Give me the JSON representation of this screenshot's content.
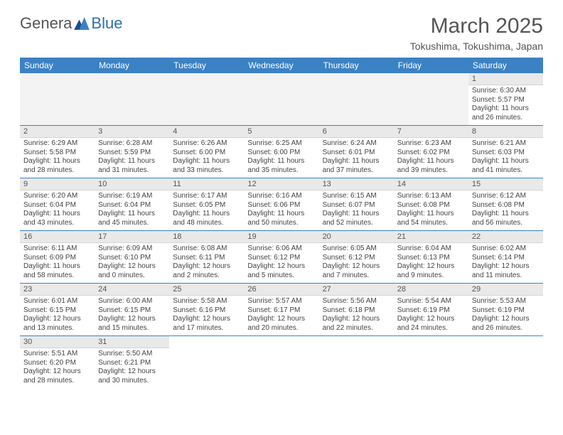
{
  "logo": {
    "text1": "Genera",
    "text2": "Blue"
  },
  "title": "March 2025",
  "location": "Tokushima, Tokushima, Japan",
  "colors": {
    "header_bg": "#3b82c4",
    "header_text": "#ffffff",
    "daynum_bg": "#e9e9e9",
    "border": "#3b82c4",
    "text": "#444444"
  },
  "weekdays": [
    "Sunday",
    "Monday",
    "Tuesday",
    "Wednesday",
    "Thursday",
    "Friday",
    "Saturday"
  ],
  "weeks": [
    [
      null,
      null,
      null,
      null,
      null,
      null,
      {
        "n": "1",
        "sr": "6:30 AM",
        "ss": "5:57 PM",
        "dl": "11 hours and 26 minutes."
      }
    ],
    [
      {
        "n": "2",
        "sr": "6:29 AM",
        "ss": "5:58 PM",
        "dl": "11 hours and 28 minutes."
      },
      {
        "n": "3",
        "sr": "6:28 AM",
        "ss": "5:59 PM",
        "dl": "11 hours and 31 minutes."
      },
      {
        "n": "4",
        "sr": "6:26 AM",
        "ss": "6:00 PM",
        "dl": "11 hours and 33 minutes."
      },
      {
        "n": "5",
        "sr": "6:25 AM",
        "ss": "6:00 PM",
        "dl": "11 hours and 35 minutes."
      },
      {
        "n": "6",
        "sr": "6:24 AM",
        "ss": "6:01 PM",
        "dl": "11 hours and 37 minutes."
      },
      {
        "n": "7",
        "sr": "6:23 AM",
        "ss": "6:02 PM",
        "dl": "11 hours and 39 minutes."
      },
      {
        "n": "8",
        "sr": "6:21 AM",
        "ss": "6:03 PM",
        "dl": "11 hours and 41 minutes."
      }
    ],
    [
      {
        "n": "9",
        "sr": "6:20 AM",
        "ss": "6:04 PM",
        "dl": "11 hours and 43 minutes."
      },
      {
        "n": "10",
        "sr": "6:19 AM",
        "ss": "6:04 PM",
        "dl": "11 hours and 45 minutes."
      },
      {
        "n": "11",
        "sr": "6:17 AM",
        "ss": "6:05 PM",
        "dl": "11 hours and 48 minutes."
      },
      {
        "n": "12",
        "sr": "6:16 AM",
        "ss": "6:06 PM",
        "dl": "11 hours and 50 minutes."
      },
      {
        "n": "13",
        "sr": "6:15 AM",
        "ss": "6:07 PM",
        "dl": "11 hours and 52 minutes."
      },
      {
        "n": "14",
        "sr": "6:13 AM",
        "ss": "6:08 PM",
        "dl": "11 hours and 54 minutes."
      },
      {
        "n": "15",
        "sr": "6:12 AM",
        "ss": "6:08 PM",
        "dl": "11 hours and 56 minutes."
      }
    ],
    [
      {
        "n": "16",
        "sr": "6:11 AM",
        "ss": "6:09 PM",
        "dl": "11 hours and 58 minutes."
      },
      {
        "n": "17",
        "sr": "6:09 AM",
        "ss": "6:10 PM",
        "dl": "12 hours and 0 minutes."
      },
      {
        "n": "18",
        "sr": "6:08 AM",
        "ss": "6:11 PM",
        "dl": "12 hours and 2 minutes."
      },
      {
        "n": "19",
        "sr": "6:06 AM",
        "ss": "6:12 PM",
        "dl": "12 hours and 5 minutes."
      },
      {
        "n": "20",
        "sr": "6:05 AM",
        "ss": "6:12 PM",
        "dl": "12 hours and 7 minutes."
      },
      {
        "n": "21",
        "sr": "6:04 AM",
        "ss": "6:13 PM",
        "dl": "12 hours and 9 minutes."
      },
      {
        "n": "22",
        "sr": "6:02 AM",
        "ss": "6:14 PM",
        "dl": "12 hours and 11 minutes."
      }
    ],
    [
      {
        "n": "23",
        "sr": "6:01 AM",
        "ss": "6:15 PM",
        "dl": "12 hours and 13 minutes."
      },
      {
        "n": "24",
        "sr": "6:00 AM",
        "ss": "6:15 PM",
        "dl": "12 hours and 15 minutes."
      },
      {
        "n": "25",
        "sr": "5:58 AM",
        "ss": "6:16 PM",
        "dl": "12 hours and 17 minutes."
      },
      {
        "n": "26",
        "sr": "5:57 AM",
        "ss": "6:17 PM",
        "dl": "12 hours and 20 minutes."
      },
      {
        "n": "27",
        "sr": "5:56 AM",
        "ss": "6:18 PM",
        "dl": "12 hours and 22 minutes."
      },
      {
        "n": "28",
        "sr": "5:54 AM",
        "ss": "6:19 PM",
        "dl": "12 hours and 24 minutes."
      },
      {
        "n": "29",
        "sr": "5:53 AM",
        "ss": "6:19 PM",
        "dl": "12 hours and 26 minutes."
      }
    ],
    [
      {
        "n": "30",
        "sr": "5:51 AM",
        "ss": "6:20 PM",
        "dl": "12 hours and 28 minutes."
      },
      {
        "n": "31",
        "sr": "5:50 AM",
        "ss": "6:21 PM",
        "dl": "12 hours and 30 minutes."
      },
      null,
      null,
      null,
      null,
      null
    ]
  ],
  "labels": {
    "sunrise": "Sunrise:",
    "sunset": "Sunset:",
    "daylight": "Daylight:"
  }
}
